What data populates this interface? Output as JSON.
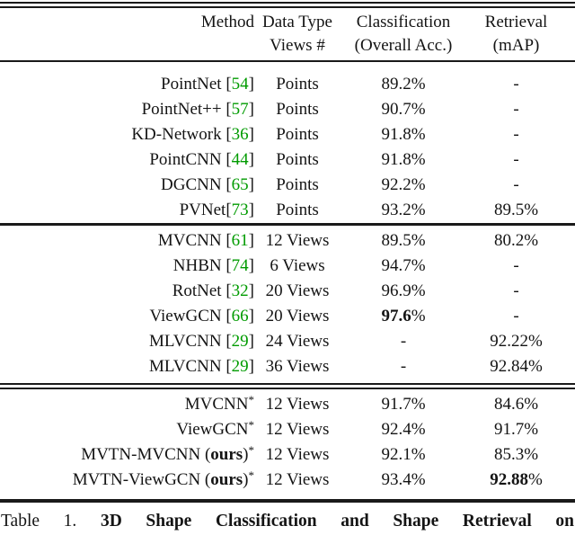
{
  "colors": {
    "citation_green": "#009B00",
    "text": "#141414",
    "rule": "#1a1a1a"
  },
  "table": {
    "header": {
      "col1_line1": "Method",
      "col1_line2": "",
      "col2_line1": "Data Type",
      "col2_line2": "Views #",
      "col3_line1": "Classification",
      "col3_line2": "(Overall Acc.)",
      "col4_line1": "Retrieval",
      "col4_line2": "(mAP)"
    },
    "sections": [
      {
        "rows": [
          {
            "method": "PointNet",
            "cite": "54",
            "views": "Points",
            "acc": "89.2%",
            "map": "-"
          },
          {
            "method": "PointNet++",
            "cite": "57",
            "views": "Points",
            "acc": "90.7%",
            "map": "-"
          },
          {
            "method": "KD-Network",
            "cite": "36",
            "views": "Points",
            "acc": "91.8%",
            "map": "-"
          },
          {
            "method": "PointCNN",
            "cite": "44",
            "views": "Points",
            "acc": "91.8%",
            "map": "-"
          },
          {
            "method": "DGCNN",
            "cite": "65",
            "views": "Points",
            "acc": "92.2%",
            "map": "-"
          },
          {
            "method": "PVNet",
            "cite": "73",
            "no_space": true,
            "views": "Points",
            "acc": "93.2%",
            "map": "89.5%"
          }
        ]
      },
      {
        "rows": [
          {
            "method": "MVCNN",
            "cite": "61",
            "views": "12 Views",
            "acc": "89.5%",
            "map": "80.2%"
          },
          {
            "method": "NHBN",
            "cite": "74",
            "views": "6 Views",
            "acc": "94.7%",
            "map": "-"
          },
          {
            "method": "RotNet",
            "cite": "32",
            "views": "20 Views",
            "acc": "96.9%",
            "map": "-"
          },
          {
            "method": "ViewGCN",
            "cite": "66",
            "views": "20 Views",
            "acc": "97.6%",
            "acc_bold": true,
            "map": "-"
          },
          {
            "method": "MLVCNN",
            "cite": "29",
            "views": "24 Views",
            "acc": "-",
            "map": "92.22%"
          },
          {
            "method": "MLVCNN",
            "cite": "29",
            "views": "36 Views",
            "acc": "-",
            "map": "92.84%"
          }
        ]
      },
      {
        "rows": [
          {
            "method": "MVCNN",
            "star": true,
            "views": "12 Views",
            "acc": "91.7%",
            "map": "84.6%"
          },
          {
            "method": "ViewGCN",
            "star": true,
            "views": "12 Views",
            "acc": "92.4%",
            "map": "91.7%"
          },
          {
            "method_prefix": "MVTN-MVCNN (",
            "method_bold": "ours",
            "method_suffix": ")",
            "star": true,
            "views": "12 Views",
            "acc": "92.1%",
            "map": "85.3%"
          },
          {
            "method_prefix": "MVTN-ViewGCN (",
            "method_bold": "ours",
            "method_suffix": ")",
            "star": true,
            "views": "12 Views",
            "acc": "93.4%",
            "map": "92.88%",
            "map_bold": true
          }
        ]
      }
    ],
    "caption_prefix": "Table 1.",
    "caption_bold": "3D Shape Classification and Shape Retrieval on"
  }
}
